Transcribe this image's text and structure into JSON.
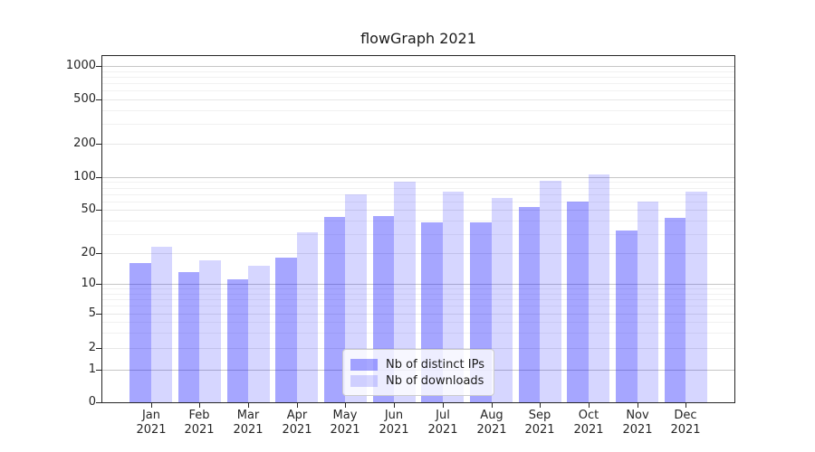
{
  "title": "flowGraph 2021",
  "chart_data": {
    "type": "bar",
    "title": "flowGraph 2021",
    "xlabel": "",
    "ylabel": "",
    "scale": "symlog",
    "grid": true,
    "legend_position": "lower center",
    "ylim": [
      0,
      1230
    ],
    "yticks": [
      0,
      1,
      2,
      5,
      10,
      20,
      50,
      100,
      200,
      500,
      1000
    ],
    "ytick_labels": [
      "0",
      "1",
      "2",
      "5",
      "10",
      "20",
      "50",
      "100",
      "200",
      "500",
      "1000"
    ],
    "categories": [
      "Jan 2021",
      "Feb 2021",
      "Mar 2021",
      "Apr 2021",
      "May 2021",
      "Jun 2021",
      "Jul 2021",
      "Aug 2021",
      "Sep 2021",
      "Oct 2021",
      "Nov 2021",
      "Dec 2021"
    ],
    "x_tick_lines": [
      {
        "month": "Jan",
        "year": "2021"
      },
      {
        "month": "Feb",
        "year": "2021"
      },
      {
        "month": "Mar",
        "year": "2021"
      },
      {
        "month": "Apr",
        "year": "2021"
      },
      {
        "month": "May",
        "year": "2021"
      },
      {
        "month": "Jun",
        "year": "2021"
      },
      {
        "month": "Jul",
        "year": "2021"
      },
      {
        "month": "Aug",
        "year": "2021"
      },
      {
        "month": "Sep",
        "year": "2021"
      },
      {
        "month": "Oct",
        "year": "2021"
      },
      {
        "month": "Nov",
        "year": "2021"
      },
      {
        "month": "Dec",
        "year": "2021"
      }
    ],
    "series": [
      {
        "name": "Nb of distinct IPs",
        "key": "distinct-ips",
        "color": "rgba(0,0,255,0.35)",
        "values": [
          16,
          13,
          11,
          18,
          43,
          44,
          38,
          38,
          53,
          60,
          32,
          42
        ]
      },
      {
        "name": "Nb of downloads",
        "key": "downloads",
        "color": "rgba(0,0,255,0.16)",
        "values": [
          23,
          17,
          15,
          31,
          70,
          90,
          74,
          64,
          93,
          105,
          60,
          73
        ]
      }
    ]
  },
  "colors": {
    "bar_dark": "rgba(0,0,255,0.35)",
    "bar_light": "rgba(0,0,255,0.16)",
    "grid_major": "#c6c6c6",
    "grid_light": "#e7e7e7",
    "spine": "#262626",
    "legend_border": "#cccccc"
  }
}
